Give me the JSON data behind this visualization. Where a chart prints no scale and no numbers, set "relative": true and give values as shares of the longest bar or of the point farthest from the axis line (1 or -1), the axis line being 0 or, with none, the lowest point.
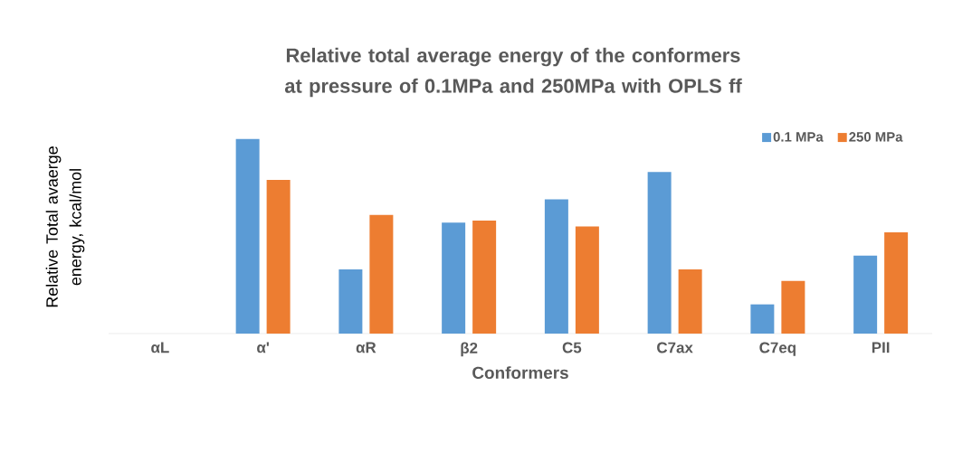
{
  "chart_data": {
    "type": "bar",
    "title": "Relative total average energy of the conformers at pressure of 0.1MPa and 250MPa with OPLS ff",
    "xlabel": "Conformers",
    "ylabel": "Relative Total avaerge energy, kcal/mol",
    "categories": [
      "αL",
      "α'",
      "αR",
      "β2",
      "C5",
      "C7ax",
      "C7eq",
      "PII"
    ],
    "relative": true,
    "legend": "top right",
    "series": [
      {
        "name": "0.1 MPa",
        "color": "#5b9bd5",
        "values": [
          0,
          1,
          0.33,
          0.57,
          0.69,
          0.83,
          0.15,
          0.4
        ]
      },
      {
        "name": "250 MPa",
        "color": "#ed7d31",
        "values": [
          0,
          0.79,
          0.61,
          0.58,
          0.55,
          0.33,
          0.27,
          0.52
        ]
      }
    ]
  }
}
